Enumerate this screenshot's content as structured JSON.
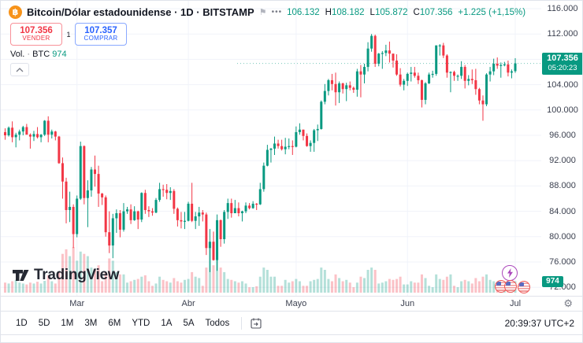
{
  "header": {
    "symbol_line": "Bitcoin/Dólar estadounidense · 1D · BITSTAMP",
    "ohlc": {
      "open": "106.132",
      "h_label": "H",
      "high": "108.182",
      "l_label": "L",
      "low": "105.872",
      "c_label": "C",
      "close": "107.356",
      "change": "+1.225 (+1,15%)"
    },
    "sell": {
      "price": "107.356",
      "label": "VENDER"
    },
    "spread": "1",
    "buy": {
      "price": "107.357",
      "label": "COMPRAR"
    },
    "volume_row": {
      "label": "Vol.",
      "sep": "·",
      "unit": "BTC",
      "value": "974"
    }
  },
  "icons": {
    "bitcoin": "฿",
    "flag": "⚑",
    "more": "•••",
    "gear": "⚙"
  },
  "watermark": "TradingView",
  "price_scale": {
    "badge": {
      "price": "107.356",
      "countdown": "05:20:23"
    },
    "volume_badge": "974"
  },
  "toolbar": {
    "ranges": [
      "1D",
      "5D",
      "1M",
      "3M",
      "6M",
      "YTD",
      "1A",
      "5A",
      "Todos"
    ],
    "clock": "20:39:37 UTC+2"
  },
  "colors": {
    "up": "#089981",
    "down": "#f23645",
    "buy_blue": "#2962ff",
    "vol_up": "rgba(8,153,129,0.3)",
    "vol_down": "rgba(242,54,69,0.3)",
    "grid": "#f0f3fa",
    "accent_orange": "#f7931a"
  },
  "chart_data": {
    "type": "candlestick",
    "title": "Bitcoin/Dólar estadounidense 1D BITSTAMP",
    "unit": "USD (thousands)",
    "y_axis": {
      "ticks": [
        {
          "label": "116.000",
          "value": 116
        },
        {
          "label": "112.000",
          "value": 112
        },
        {
          "label": "108.000",
          "value": 108
        },
        {
          "label": "104.000",
          "value": 104
        },
        {
          "label": "100.000",
          "value": 100
        },
        {
          "label": "96.000",
          "value": 96
        },
        {
          "label": "92.000",
          "value": 92
        },
        {
          "label": "88.000",
          "value": 88
        },
        {
          "label": "84.000",
          "value": 84
        },
        {
          "label": "80.000",
          "value": 80
        },
        {
          "label": "76.000",
          "value": 76
        },
        {
          "label": "72.000",
          "value": 72
        }
      ]
    },
    "x_axis": {
      "months": [
        {
          "label": "Mar",
          "index": 20
        },
        {
          "label": "Abr",
          "index": 51
        },
        {
          "label": "Mayo",
          "index": 81
        },
        {
          "label": "Jun",
          "index": 112
        },
        {
          "label": "Jul",
          "index": 142
        }
      ]
    },
    "price_line": {
      "value": 107.356,
      "countdown": "05:20:23"
    },
    "current_volume_btc": 974,
    "candles_format": [
      "open",
      "high",
      "low",
      "close",
      "relative_volume"
    ],
    "candles": [
      [
        96.5,
        97.1,
        95.3,
        96.0,
        0.22
      ],
      [
        96.0,
        97.4,
        95.8,
        97.2,
        0.2
      ],
      [
        97.2,
        98.2,
        94.9,
        95.7,
        0.25
      ],
      [
        95.7,
        96.4,
        94.1,
        96.1,
        0.28
      ],
      [
        96.1,
        96.9,
        95.2,
        96.6,
        0.22
      ],
      [
        96.6,
        97.5,
        96.0,
        97.3,
        0.2
      ],
      [
        97.3,
        97.8,
        96.2,
        96.1,
        0.18
      ],
      [
        96.1,
        96.3,
        93.9,
        95.8,
        0.22
      ],
      [
        95.8,
        96.7,
        95.1,
        96.2,
        0.2
      ],
      [
        96.2,
        97.3,
        95.5,
        95.7,
        0.24
      ],
      [
        95.7,
        96.2,
        94.9,
        96.1,
        0.2
      ],
      [
        96.1,
        98.4,
        95.9,
        98.3,
        0.26
      ],
      [
        98.3,
        99.0,
        94.9,
        96.1,
        0.38
      ],
      [
        96.1,
        96.9,
        95.5,
        96.6,
        0.25
      ],
      [
        96.6,
        96.7,
        95.2,
        95.8,
        0.2
      ],
      [
        95.8,
        95.9,
        91.5,
        91.6,
        0.45
      ],
      [
        91.6,
        92.5,
        86.0,
        88.7,
        0.85
      ],
      [
        88.7,
        89.3,
        82.1,
        84.2,
        0.95
      ],
      [
        84.2,
        87.1,
        82.3,
        84.7,
        0.8
      ],
      [
        84.7,
        85.1,
        78.2,
        80.4,
        1.0
      ],
      [
        80.4,
        86.5,
        79.9,
        86.0,
        0.7
      ],
      [
        86.0,
        95.0,
        85.8,
        94.3,
        0.9
      ],
      [
        94.3,
        94.4,
        85.1,
        86.1,
        0.85
      ],
      [
        86.1,
        88.9,
        81.5,
        87.3,
        0.8
      ],
      [
        87.3,
        91.0,
        86.3,
        90.6,
        0.55
      ],
      [
        90.6,
        92.8,
        87.9,
        89.9,
        0.5
      ],
      [
        89.9,
        91.2,
        84.7,
        86.8,
        0.6
      ],
      [
        86.8,
        86.9,
        85.0,
        86.2,
        0.25
      ],
      [
        86.2,
        86.5,
        80.0,
        80.7,
        0.45
      ],
      [
        80.7,
        84.0,
        77.4,
        78.6,
        0.75
      ],
      [
        78.6,
        83.6,
        76.6,
        82.9,
        0.7
      ],
      [
        82.9,
        84.3,
        80.6,
        83.7,
        0.45
      ],
      [
        83.7,
        84.2,
        79.9,
        81.1,
        0.4
      ],
      [
        81.1,
        85.3,
        80.8,
        84.0,
        0.4
      ],
      [
        84.0,
        84.7,
        83.6,
        84.3,
        0.22
      ],
      [
        84.3,
        85.1,
        82.0,
        82.6,
        0.25
      ],
      [
        82.6,
        84.8,
        82.5,
        84.0,
        0.28
      ],
      [
        84.0,
        84.1,
        81.2,
        82.7,
        0.3
      ],
      [
        82.7,
        87.0,
        82.3,
        86.9,
        0.35
      ],
      [
        86.9,
        87.4,
        83.6,
        84.2,
        0.38
      ],
      [
        84.2,
        84.8,
        83.1,
        84.0,
        0.25
      ],
      [
        84.0,
        84.5,
        83.3,
        83.8,
        0.15
      ],
      [
        83.8,
        86.1,
        83.7,
        85.8,
        0.2
      ],
      [
        85.8,
        88.5,
        85.5,
        87.5,
        0.35
      ],
      [
        87.5,
        88.2,
        86.3,
        87.4,
        0.28
      ],
      [
        87.4,
        88.3,
        85.9,
        86.9,
        0.25
      ],
      [
        86.9,
        87.8,
        85.8,
        87.2,
        0.22
      ],
      [
        87.2,
        87.5,
        83.6,
        84.4,
        0.32
      ],
      [
        84.4,
        84.6,
        81.6,
        82.6,
        0.25
      ],
      [
        82.6,
        83.9,
        81.3,
        82.4,
        0.22
      ],
      [
        82.4,
        83.9,
        81.2,
        82.5,
        0.28
      ],
      [
        82.5,
        85.5,
        82.4,
        85.2,
        0.3
      ],
      [
        85.2,
        88.5,
        82.3,
        82.5,
        0.45
      ],
      [
        82.5,
        83.9,
        81.2,
        83.2,
        0.35
      ],
      [
        83.2,
        84.7,
        81.7,
        83.8,
        0.32
      ],
      [
        83.8,
        84.2,
        82.4,
        83.5,
        0.15
      ],
      [
        83.5,
        83.8,
        77.1,
        78.2,
        0.55
      ],
      [
        78.2,
        81.2,
        74.4,
        79.2,
        1.0
      ],
      [
        79.2,
        80.8,
        76.2,
        76.3,
        0.6
      ],
      [
        76.3,
        83.5,
        74.6,
        82.6,
        0.9
      ],
      [
        82.6,
        82.7,
        78.4,
        79.6,
        0.55
      ],
      [
        79.6,
        84.2,
        78.9,
        83.9,
        0.45
      ],
      [
        83.9,
        86.0,
        82.8,
        85.3,
        0.3
      ],
      [
        85.3,
        86.0,
        83.0,
        83.7,
        0.28
      ],
      [
        83.7,
        85.8,
        83.7,
        84.5,
        0.25
      ],
      [
        84.5,
        85.4,
        83.2,
        83.7,
        0.22
      ],
      [
        83.7,
        84.1,
        82.4,
        84.0,
        0.25
      ],
      [
        84.0,
        85.4,
        83.7,
        84.9,
        0.2
      ],
      [
        84.9,
        85.3,
        84.3,
        84.5,
        0.12
      ],
      [
        84.5,
        85.6,
        84.4,
        85.2,
        0.12
      ],
      [
        85.2,
        85.3,
        84.2,
        85.1,
        0.14
      ],
      [
        85.1,
        88.5,
        85.0,
        87.5,
        0.35
      ],
      [
        87.5,
        91.7,
        87.1,
        91.2,
        0.55
      ],
      [
        91.2,
        94.5,
        91.1,
        93.7,
        0.5
      ],
      [
        93.7,
        94.0,
        91.7,
        93.9,
        0.35
      ],
      [
        93.9,
        95.8,
        92.9,
        94.7,
        0.35
      ],
      [
        94.7,
        95.3,
        93.9,
        94.3,
        0.15
      ],
      [
        94.3,
        95.3,
        93.6,
        93.8,
        0.15
      ],
      [
        93.8,
        95.6,
        93.0,
        94.2,
        0.28
      ],
      [
        94.2,
        95.5,
        93.8,
        94.3,
        0.22
      ],
      [
        94.3,
        95.2,
        92.9,
        94.2,
        0.25
      ],
      [
        94.2,
        97.4,
        94.1,
        96.5,
        0.3
      ],
      [
        96.5,
        97.9,
        96.1,
        96.9,
        0.25
      ],
      [
        96.9,
        96.9,
        95.2,
        95.9,
        0.15
      ],
      [
        95.9,
        96.3,
        94.2,
        94.3,
        0.15
      ],
      [
        94.3,
        95.2,
        93.4,
        94.8,
        0.25
      ],
      [
        94.8,
        97.0,
        93.4,
        96.8,
        0.28
      ],
      [
        96.8,
        97.7,
        95.1,
        97.0,
        0.3
      ],
      [
        97.0,
        101.5,
        96.9,
        101.3,
        0.55
      ],
      [
        101.3,
        104.1,
        100.9,
        103.0,
        0.5
      ],
      [
        103.0,
        104.9,
        102.3,
        104.7,
        0.3
      ],
      [
        104.7,
        105.7,
        103.1,
        104.1,
        0.25
      ],
      [
        104.1,
        105.9,
        100.7,
        102.8,
        0.4
      ],
      [
        102.8,
        104.5,
        101.1,
        104.2,
        0.32
      ],
      [
        104.2,
        104.3,
        102.6,
        103.3,
        0.25
      ],
      [
        103.3,
        104.3,
        101.4,
        103.9,
        0.28
      ],
      [
        103.9,
        104.5,
        103.1,
        103.5,
        0.22
      ],
      [
        103.5,
        103.7,
        102.7,
        103.2,
        0.12
      ],
      [
        103.2,
        106.5,
        102.1,
        106.1,
        0.22
      ],
      [
        106.1,
        107.1,
        102.0,
        105.6,
        0.35
      ],
      [
        105.6,
        107.3,
        104.2,
        106.8,
        0.32
      ],
      [
        106.8,
        110.7,
        106.1,
        109.7,
        0.5
      ],
      [
        109.7,
        112.0,
        109.2,
        111.7,
        0.55
      ],
      [
        111.7,
        111.9,
        106.8,
        107.3,
        0.5
      ],
      [
        107.3,
        109.0,
        106.9,
        108.9,
        0.2
      ],
      [
        108.9,
        109.3,
        106.5,
        109.0,
        0.22
      ],
      [
        109.0,
        110.3,
        108.5,
        109.4,
        0.25
      ],
      [
        109.4,
        110.8,
        107.5,
        108.9,
        0.3
      ],
      [
        108.9,
        108.9,
        106.7,
        107.8,
        0.28
      ],
      [
        107.8,
        108.8,
        105.4,
        105.6,
        0.3
      ],
      [
        105.6,
        106.6,
        103.7,
        104.0,
        0.35
      ],
      [
        104.0,
        104.9,
        103.1,
        104.6,
        0.18
      ],
      [
        104.6,
        105.9,
        103.8,
        105.7,
        0.18
      ],
      [
        105.7,
        106.8,
        104.5,
        105.9,
        0.25
      ],
      [
        105.9,
        106.8,
        105.1,
        105.4,
        0.22
      ],
      [
        105.4,
        105.9,
        104.1,
        104.7,
        0.22
      ],
      [
        104.7,
        104.8,
        100.4,
        101.6,
        0.4
      ],
      [
        101.6,
        104.4,
        100.9,
        104.2,
        0.32
      ],
      [
        104.2,
        105.9,
        104.1,
        105.6,
        0.15
      ],
      [
        105.6,
        106.2,
        105.1,
        105.7,
        0.12
      ],
      [
        105.7,
        110.2,
        105.4,
        110.2,
        0.4
      ],
      [
        110.2,
        110.4,
        108.6,
        110.2,
        0.3
      ],
      [
        110.2,
        110.6,
        108.2,
        108.6,
        0.28
      ],
      [
        108.6,
        108.8,
        105.1,
        105.9,
        0.35
      ],
      [
        105.9,
        106.1,
        102.8,
        106.0,
        0.4
      ],
      [
        106.0,
        106.2,
        104.6,
        105.4,
        0.15
      ],
      [
        105.4,
        105.6,
        104.6,
        105.4,
        0.12
      ],
      [
        105.4,
        107.7,
        104.9,
        106.8,
        0.25
      ],
      [
        106.8,
        107.1,
        103.4,
        104.6,
        0.28
      ],
      [
        104.6,
        105.5,
        103.9,
        104.9,
        0.25
      ],
      [
        104.9,
        106.4,
        104.1,
        104.7,
        0.2
      ],
      [
        104.7,
        106.5,
        102.4,
        103.3,
        0.32
      ],
      [
        103.3,
        103.5,
        100.9,
        101.5,
        0.25
      ],
      [
        101.5,
        102.3,
        98.3,
        100.9,
        0.35
      ],
      [
        100.9,
        105.8,
        100.6,
        105.6,
        0.4
      ],
      [
        105.6,
        106.8,
        104.5,
        106.1,
        0.28
      ],
      [
        106.1,
        108.1,
        105.5,
        107.3,
        0.25
      ],
      [
        107.3,
        108.3,
        106.5,
        107.0,
        0.22
      ],
      [
        107.0,
        107.5,
        105.1,
        107.1,
        0.25
      ],
      [
        107.1,
        107.6,
        106.9,
        107.2,
        0.1
      ],
      [
        107.2,
        107.8,
        105.3,
        105.9,
        0.15
      ],
      [
        105.9,
        106.4,
        105.0,
        106.1,
        0.2
      ],
      [
        106.132,
        108.182,
        105.872,
        107.356,
        0.25
      ]
    ]
  }
}
